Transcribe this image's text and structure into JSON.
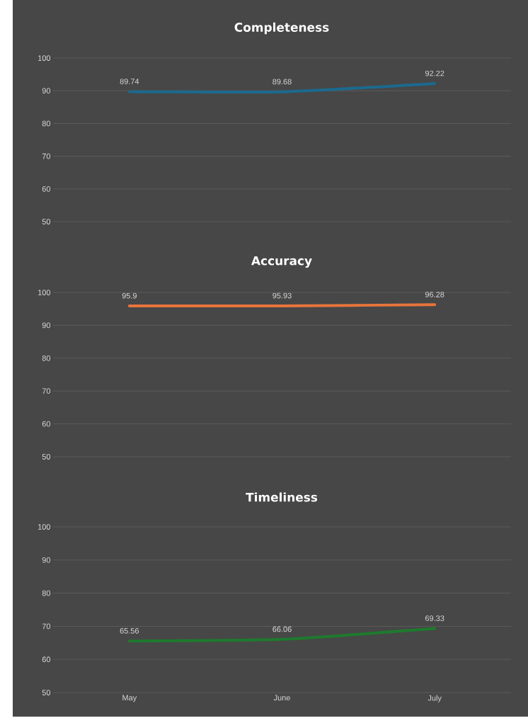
{
  "chart_data": [
    {
      "type": "line",
      "title": "Completeness",
      "categories": [
        null,
        null,
        null
      ],
      "values": [
        89.74,
        89.68,
        92.22
      ],
      "color": "#1b6a8f",
      "ylim": [
        50,
        100
      ],
      "yticks": [
        50,
        60,
        70,
        80,
        90,
        100
      ],
      "grid": "y",
      "data_labels": true,
      "tick_labels": "y"
    },
    {
      "type": "line",
      "title": "Accuracy",
      "categories": [
        null,
        null,
        null
      ],
      "values": [
        95.9,
        95.93,
        96.28
      ],
      "color": "#e8743b",
      "ylim": [
        50,
        100
      ],
      "yticks": [
        50,
        60,
        70,
        80,
        90,
        100
      ],
      "grid": "y",
      "data_labels": true,
      "tick_labels": "y"
    },
    {
      "type": "line",
      "title": "Timeliness",
      "categories": [
        "May",
        "June",
        "July"
      ],
      "values": [
        65.56,
        66.06,
        69.33
      ],
      "color": "#1e7a2e",
      "ylim": [
        50,
        100
      ],
      "yticks": [
        50,
        60,
        70,
        80,
        90,
        100
      ],
      "grid": "y",
      "data_labels": true
    }
  ]
}
